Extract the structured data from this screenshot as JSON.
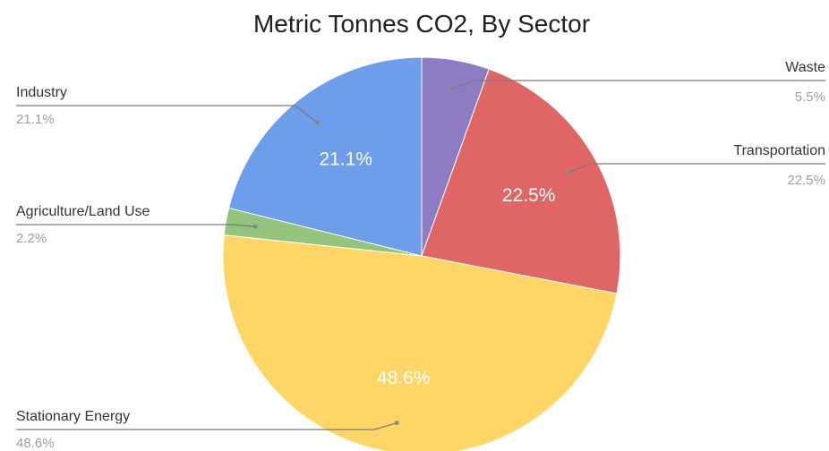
{
  "chart_data": {
    "type": "pie",
    "title": "Metric Tonnes CO2, By Sector",
    "slices": [
      {
        "label": "Waste",
        "value": 5.5,
        "pct_label": "5.5%",
        "color": "#8e7cc3",
        "side": "right",
        "inside_label": ""
      },
      {
        "label": "Transportation",
        "value": 22.5,
        "pct_label": "22.5%",
        "color": "#e06666",
        "side": "right",
        "inside_label": "22.5%"
      },
      {
        "label": "Stationary Energy",
        "value": 48.6,
        "pct_label": "48.6%",
        "color": "#ffd666",
        "side": "left",
        "inside_label": "48.6%"
      },
      {
        "label": "Agriculture/Land Use",
        "value": 2.2,
        "pct_label": "2.2%",
        "color": "#93c47d",
        "side": "left",
        "inside_label": ""
      },
      {
        "label": "Industry",
        "value": 21.1,
        "pct_label": "21.1%",
        "color": "#6d9eeb",
        "side": "left",
        "inside_label": "21.1%"
      }
    ],
    "legend": "leader-labels"
  }
}
